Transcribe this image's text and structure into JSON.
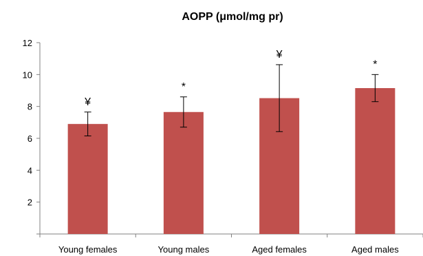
{
  "chart_data": {
    "type": "bar",
    "title": "AOPP (μmol/mg pr)",
    "xlabel": "",
    "ylabel": "",
    "categories": [
      "Young females",
      "Young males",
      "Aged females",
      "Aged males"
    ],
    "values": [
      6.9,
      7.65,
      8.52,
      9.15
    ],
    "error": [
      0.75,
      0.95,
      2.1,
      0.85
    ],
    "annotations": [
      "¥",
      "*",
      "¥",
      "*"
    ],
    "ylim": [
      0,
      12
    ],
    "yticks": [
      2,
      4,
      6,
      8,
      10,
      12
    ],
    "grid": false,
    "bar_color": "#C0504D"
  }
}
